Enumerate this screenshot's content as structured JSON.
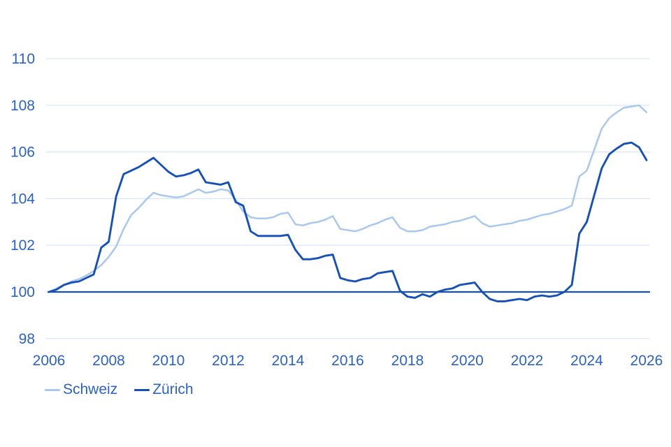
{
  "page": {
    "background": "#ffffff"
  },
  "colors": {
    "schweiz_line": "#a8c8f0",
    "zuerich_line": "#1551b8",
    "grid": "#d8e5f7",
    "axis_text": "#2b62c8",
    "baseline": "#1551b8"
  },
  "legend": {
    "items": [
      {
        "label": "Schweiz",
        "color": "#a8c8f0"
      },
      {
        "label": "Zürich",
        "color": "#1551b8"
      }
    ]
  },
  "chart_data": {
    "type": "line",
    "title": "",
    "xlabel": "",
    "ylabel": "",
    "x_start": 2006,
    "x_step": 0.25,
    "xlim": [
      2006,
      2026
    ],
    "ylim": [
      98,
      110
    ],
    "x_ticks": [
      2006,
      2008,
      2010,
      2012,
      2014,
      2016,
      2018,
      2020,
      2022,
      2024,
      2026
    ],
    "y_ticks": [
      98,
      100,
      102,
      104,
      106,
      108,
      110
    ],
    "grid": "horizontal",
    "baseline": 100,
    "legend_position": "bottom-left",
    "series": [
      {
        "name": "Schweiz",
        "color": "#a8c8f0",
        "values": [
          100.0,
          100.15,
          100.3,
          100.45,
          100.55,
          100.7,
          100.9,
          101.15,
          101.5,
          101.95,
          102.7,
          103.3,
          103.6,
          103.95,
          104.25,
          104.15,
          104.1,
          104.05,
          104.1,
          104.25,
          104.4,
          104.25,
          104.3,
          104.4,
          104.35,
          103.95,
          103.45,
          103.2,
          103.15,
          103.15,
          103.2,
          103.35,
          103.4,
          102.9,
          102.85,
          102.95,
          103.0,
          103.1,
          103.25,
          102.7,
          102.65,
          102.6,
          102.7,
          102.85,
          102.95,
          103.1,
          103.2,
          102.75,
          102.6,
          102.6,
          102.65,
          102.8,
          102.85,
          102.9,
          103.0,
          103.05,
          103.15,
          103.25,
          102.95,
          102.8,
          102.85,
          102.9,
          102.95,
          103.05,
          103.1,
          103.2,
          103.3,
          103.35,
          103.45,
          103.55,
          103.7,
          104.95,
          105.2,
          106.1,
          107.0,
          107.45,
          107.7,
          107.9,
          107.95,
          108.0,
          107.7
        ]
      },
      {
        "name": "Zürich",
        "color": "#1551b8",
        "values": [
          100.0,
          100.1,
          100.3,
          100.4,
          100.45,
          100.6,
          100.75,
          101.9,
          102.15,
          104.1,
          105.05,
          105.2,
          105.35,
          105.55,
          105.75,
          105.45,
          105.15,
          104.95,
          105.0,
          105.1,
          105.25,
          104.7,
          104.65,
          104.6,
          104.7,
          103.85,
          103.7,
          102.6,
          102.4,
          102.4,
          102.4,
          102.4,
          102.45,
          101.8,
          101.4,
          101.4,
          101.45,
          101.55,
          101.6,
          100.6,
          100.5,
          100.45,
          100.55,
          100.6,
          100.8,
          100.85,
          100.9,
          100.05,
          99.8,
          99.75,
          99.9,
          99.8,
          100.0,
          100.1,
          100.15,
          100.3,
          100.35,
          100.4,
          100.0,
          99.7,
          99.6,
          99.6,
          99.65,
          99.7,
          99.65,
          99.8,
          99.85,
          99.8,
          99.85,
          100.0,
          100.3,
          102.5,
          103.0,
          104.15,
          105.3,
          105.9,
          106.15,
          106.35,
          106.4,
          106.2,
          105.65
        ]
      }
    ]
  }
}
